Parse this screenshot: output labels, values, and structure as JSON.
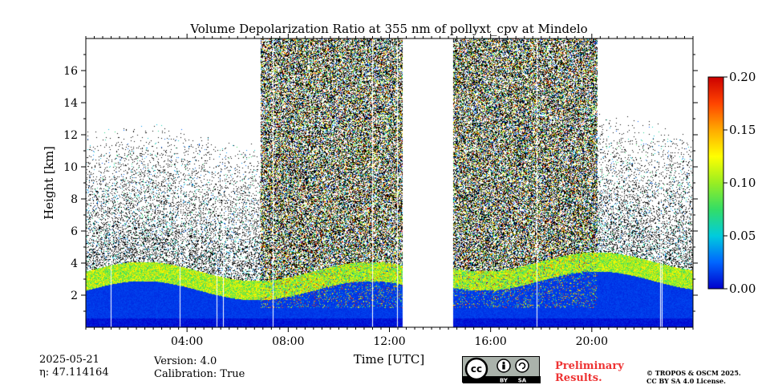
{
  "chart_data": {
    "type": "heatmap",
    "title": "Volume Depolarization Ratio at 355 nm of pollyxt_cpv at Mindelo",
    "xlabel": "Time [UTC]",
    "ylabel": "Height [km]",
    "xlim": [
      0,
      24
    ],
    "ylim": [
      0,
      18
    ],
    "x_ticks": [
      {
        "value": 4,
        "label": "04:00"
      },
      {
        "value": 8,
        "label": "08:00"
      },
      {
        "value": 12,
        "label": "12:00"
      },
      {
        "value": 16,
        "label": "16:00"
      },
      {
        "value": 20,
        "label": "20:00"
      }
    ],
    "y_ticks": [
      {
        "value": 2,
        "label": "2"
      },
      {
        "value": 4,
        "label": "4"
      },
      {
        "value": 6,
        "label": "6"
      },
      {
        "value": 8,
        "label": "8"
      },
      {
        "value": 10,
        "label": "10"
      },
      {
        "value": 12,
        "label": "12"
      },
      {
        "value": 14,
        "label": "14"
      },
      {
        "value": 16,
        "label": "16"
      }
    ],
    "colorbar": {
      "min": 0.0,
      "max": 0.2,
      "ticks": [
        "0.00",
        "0.05",
        "0.10",
        "0.15",
        "0.20"
      ],
      "colormap": [
        "#0000cc",
        "#0066ff",
        "#00ccdd",
        "#33dd66",
        "#99ee22",
        "#ffff00",
        "#ffaa00",
        "#ff4400",
        "#cc0000"
      ]
    },
    "no_data_intervals_hours": [
      [
        12.5,
        14.5
      ]
    ],
    "noisy_intervals_hours": [
      [
        6.9,
        12.5
      ],
      [
        14.5,
        20.2
      ]
    ],
    "aerosol_layer_top_km": 3.5
  },
  "metadata": {
    "date": "2025-05-21",
    "eta": "η: 47.114164",
    "version": "Version: 4.0",
    "calibration": "Calibration: True"
  },
  "license": {
    "badge_cc": "cc",
    "badge_by": "BY",
    "badge_sa": "SA",
    "preliminary_line1": "Preliminary",
    "preliminary_line2": "Results.",
    "copyright_line1": "© TROPOS & OSCM 2025.",
    "copyright_line2": "CC BY SA 4.0 License."
  }
}
